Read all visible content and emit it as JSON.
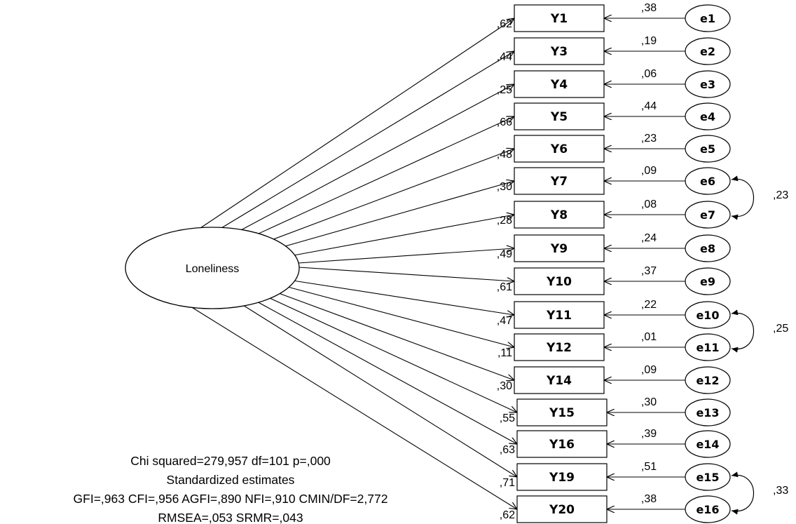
{
  "latent": {
    "label": "Loneliness"
  },
  "indicators": [
    {
      "label": "Y1",
      "loading": ",62",
      "error": "e1",
      "error_variance": ",38"
    },
    {
      "label": "Y3",
      "loading": ",44",
      "error": "e2",
      "error_variance": ",19"
    },
    {
      "label": "Y4",
      "loading": ",25",
      "error": "e3",
      "error_variance": ",06"
    },
    {
      "label": "Y5",
      "loading": ",66",
      "error": "e4",
      "error_variance": ",44"
    },
    {
      "label": "Y6",
      "loading": ",48",
      "error": "e5",
      "error_variance": ",23"
    },
    {
      "label": "Y7",
      "loading": ",30",
      "error": "e6",
      "error_variance": ",09"
    },
    {
      "label": "Y8",
      "loading": ",28",
      "error": "e7",
      "error_variance": ",08"
    },
    {
      "label": "Y9",
      "loading": ",49",
      "error": "e8",
      "error_variance": ",24"
    },
    {
      "label": "Y10",
      "loading": ",61",
      "error": "e9",
      "error_variance": ",37"
    },
    {
      "label": "Y11",
      "loading": ",47",
      "error": "e10",
      "error_variance": ",22"
    },
    {
      "label": "Y12",
      "loading": ",11",
      "error": "e11",
      "error_variance": ",01"
    },
    {
      "label": "Y14",
      "loading": ",30",
      "error": "e12",
      "error_variance": ",09"
    },
    {
      "label": "Y15",
      "loading": ",55",
      "error": "e13",
      "error_variance": ",30"
    },
    {
      "label": "Y16",
      "loading": ",63",
      "error": "e14",
      "error_variance": ",39"
    },
    {
      "label": "Y19",
      "loading": ",71",
      "error": "e15",
      "error_variance": ",51"
    },
    {
      "label": "Y20",
      "loading": ",62",
      "error": "e16",
      "error_variance": ",38"
    }
  ],
  "covariances": [
    {
      "from": "e6",
      "to": "e7",
      "value": ",23"
    },
    {
      "from": "e10",
      "to": "e11",
      "value": ",25"
    },
    {
      "from": "e15",
      "to": "e16",
      "value": ",33"
    }
  ],
  "fit": {
    "line1": "Chi squared=279,957 df=101 p=,000",
    "line2": "Standardized estimates",
    "line3": "GFI=,963 CFI=,956 AGFI=,890 NFI=,910 CMIN/DF=2,772",
    "line4": "RMSEA=,053 SRMR=,043"
  }
}
